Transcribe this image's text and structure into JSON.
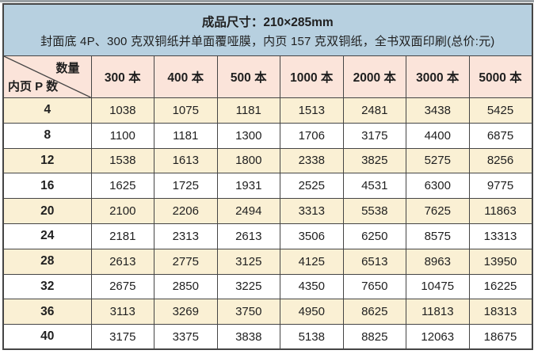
{
  "header": {
    "line1": "成品尺寸：210×285mm",
    "line2": "封面底 4P、300 克双铜纸并单面覆哑膜，内页 157 克双铜纸，全书双面印刷(总价:元)",
    "corner_top": "数量",
    "corner_bottom": "内页 P 数"
  },
  "columns": [
    "300 本",
    "400 本",
    "500 本",
    "1000 本",
    "2000 本",
    "3000 本",
    "5000 本"
  ],
  "rows": [
    {
      "pages": "4",
      "prices": [
        1038,
        1075,
        1181,
        1513,
        2481,
        3438,
        5425
      ]
    },
    {
      "pages": "8",
      "prices": [
        1100,
        1181,
        1300,
        1706,
        3175,
        4400,
        6875
      ]
    },
    {
      "pages": "12",
      "prices": [
        1538,
        1613,
        1800,
        2338,
        3825,
        5275,
        8256
      ]
    },
    {
      "pages": "16",
      "prices": [
        1625,
        1725,
        1931,
        2525,
        4531,
        6300,
        9775
      ]
    },
    {
      "pages": "20",
      "prices": [
        2100,
        2206,
        2494,
        3313,
        5538,
        7625,
        11863
      ]
    },
    {
      "pages": "24",
      "prices": [
        2181,
        2313,
        2613,
        3506,
        6250,
        8575,
        13313
      ]
    },
    {
      "pages": "28",
      "prices": [
        2613,
        2775,
        3125,
        4125,
        6513,
        8963,
        13950
      ]
    },
    {
      "pages": "32",
      "prices": [
        2675,
        2850,
        3225,
        4350,
        7650,
        10475,
        16225
      ]
    },
    {
      "pages": "36",
      "prices": [
        3113,
        3269,
        3750,
        4950,
        8625,
        11813,
        18313
      ]
    },
    {
      "pages": "40",
      "prices": [
        3175,
        3375,
        3838,
        5138,
        8825,
        12063,
        18675
      ]
    }
  ],
  "colors": {
    "header_blue": "#b7d0e0",
    "column_header_pink": "#fbe4da",
    "stripe_cream": "#faf0d4",
    "row_white": "#ffffff",
    "border": "#454545",
    "text": "#1f1f1f"
  }
}
